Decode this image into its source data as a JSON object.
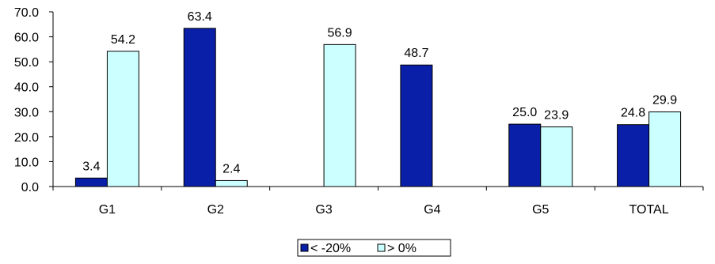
{
  "chart_data": {
    "type": "bar",
    "title": "",
    "xlabel": "",
    "ylabel": "",
    "categories": [
      "G1",
      "G2",
      "G3",
      "G4",
      "G5",
      "TOTAL"
    ],
    "series": [
      {
        "name": "< -20%",
        "color": "#0a1fa8",
        "values": [
          3.4,
          63.4,
          null,
          48.7,
          25.0,
          24.8
        ],
        "labels": [
          "3.4",
          "63.4",
          "",
          "48.7",
          "25.0",
          "24.8"
        ]
      },
      {
        "name": "> 0%",
        "color": "#ccffff",
        "values": [
          54.2,
          2.4,
          56.9,
          null,
          23.9,
          29.9
        ],
        "labels": [
          "54.2",
          "2.4",
          "56.9",
          "",
          "23.9",
          "29.9"
        ]
      }
    ],
    "ylim": [
      0,
      70
    ],
    "yticks": [
      "0.0",
      "10.0",
      "20.0",
      "30.0",
      "40.0",
      "50.0",
      "60.0",
      "70.0"
    ],
    "grid": false,
    "legend_position": "bottom-center"
  }
}
